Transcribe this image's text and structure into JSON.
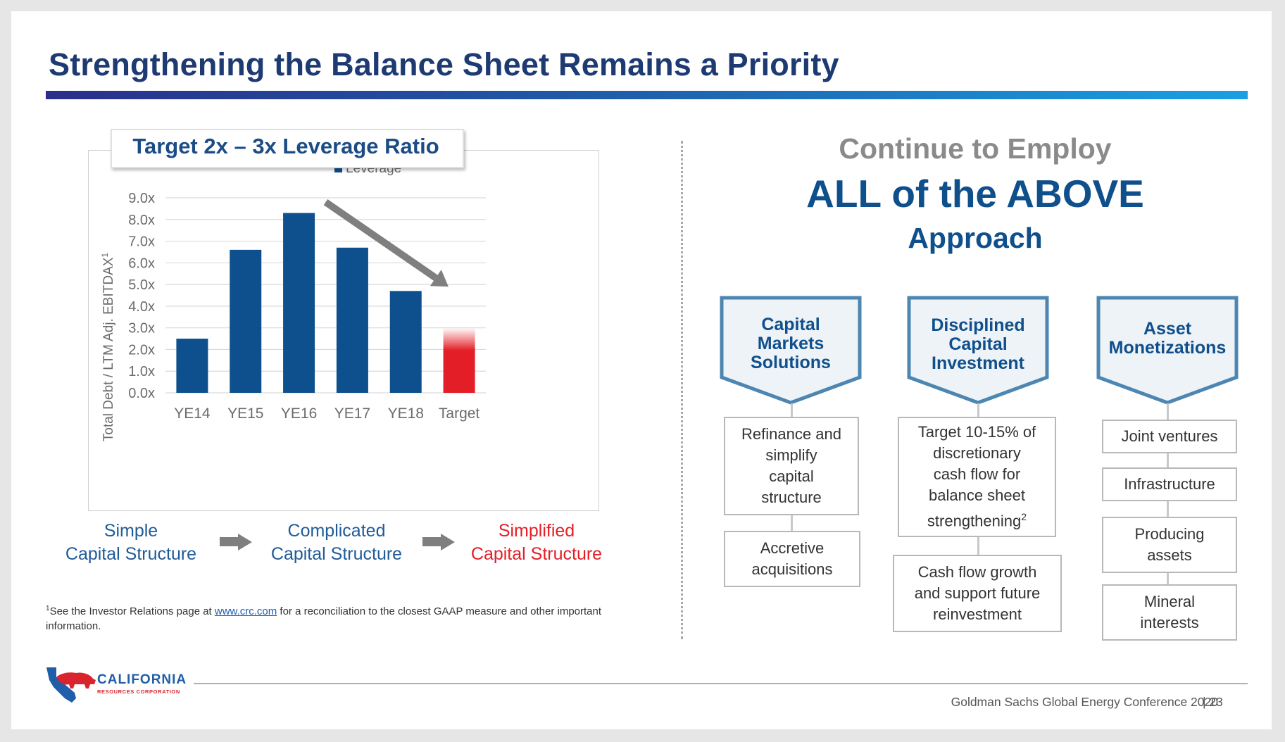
{
  "title": "Strengthening the Balance Sheet Remains a Priority",
  "chart_box_title": "Target 2x – 3x Leverage Ratio",
  "chart_data": {
    "type": "bar",
    "categories": [
      "YE14",
      "YE15",
      "YE16",
      "YE17",
      "YE18",
      "Target"
    ],
    "series": [
      {
        "name": "Leverage",
        "values": [
          2.5,
          6.6,
          8.3,
          6.7,
          4.7,
          2.8
        ]
      }
    ],
    "target_range": [
      2.0,
      3.0
    ],
    "ylabel": "Total Debt / LTM Adj. EBITDAX",
    "ylabel_sup": "1",
    "ylim": [
      0,
      9
    ],
    "yticks": [
      "0.0x",
      "1.0x",
      "2.0x",
      "3.0x",
      "4.0x",
      "5.0x",
      "6.0x",
      "7.0x",
      "8.0x",
      "9.0x"
    ],
    "grid": true,
    "legend_position": "top",
    "colors": {
      "bar": "#0e508d",
      "target": "#e41e26",
      "trend_arrow": "#7f7f7f"
    }
  },
  "flow": [
    {
      "line1": "Simple",
      "line2": "Capital Structure",
      "color": "#1f5b98"
    },
    {
      "line1": "Complicated",
      "line2": "Capital Structure",
      "color": "#1f5b98"
    },
    {
      "line1": "Simplified",
      "line2": "Capital Structure",
      "color": "#e41e26"
    }
  ],
  "footnote": {
    "sup": "1",
    "pre": "See the Investor Relations page at ",
    "link": "www.crc.com",
    "post": " for a reconciliation to the closest GAAP measure and other important information."
  },
  "right": {
    "line1": "Continue to Employ",
    "line2": "ALL of the ABOVE",
    "line3": "Approach"
  },
  "columns": [
    {
      "header": [
        "Capital",
        "Markets",
        "Solutions"
      ],
      "items": [
        {
          "lines": [
            "Refinance and",
            "simplify",
            "capital",
            "structure"
          ]
        },
        {
          "lines": [
            "Accretive",
            "acquisitions"
          ]
        }
      ]
    },
    {
      "header": [
        "Disciplined",
        "Capital",
        "Investment"
      ],
      "items": [
        {
          "lines": [
            "Target 10-15% of",
            "discretionary",
            "cash flow for",
            "balance sheet",
            "strengthening"
          ],
          "sup": "2"
        },
        {
          "lines": [
            "Cash flow growth",
            "and support future",
            "reinvestment"
          ]
        }
      ]
    },
    {
      "header": [
        "Asset",
        "Monetizations"
      ],
      "items": [
        {
          "lines": [
            "Joint ventures"
          ]
        },
        {
          "lines": [
            "Infrastructure"
          ]
        },
        {
          "lines": [
            "Producing",
            "assets"
          ]
        },
        {
          "lines": [
            "Mineral",
            "interests"
          ]
        }
      ]
    }
  ],
  "logo": {
    "word": "CALIFORNIA",
    "sub": "RESOURCES CORPORATION"
  },
  "footer": {
    "text": "Goldman Sachs Global Energy Conference 2020",
    "page": "| 23"
  }
}
